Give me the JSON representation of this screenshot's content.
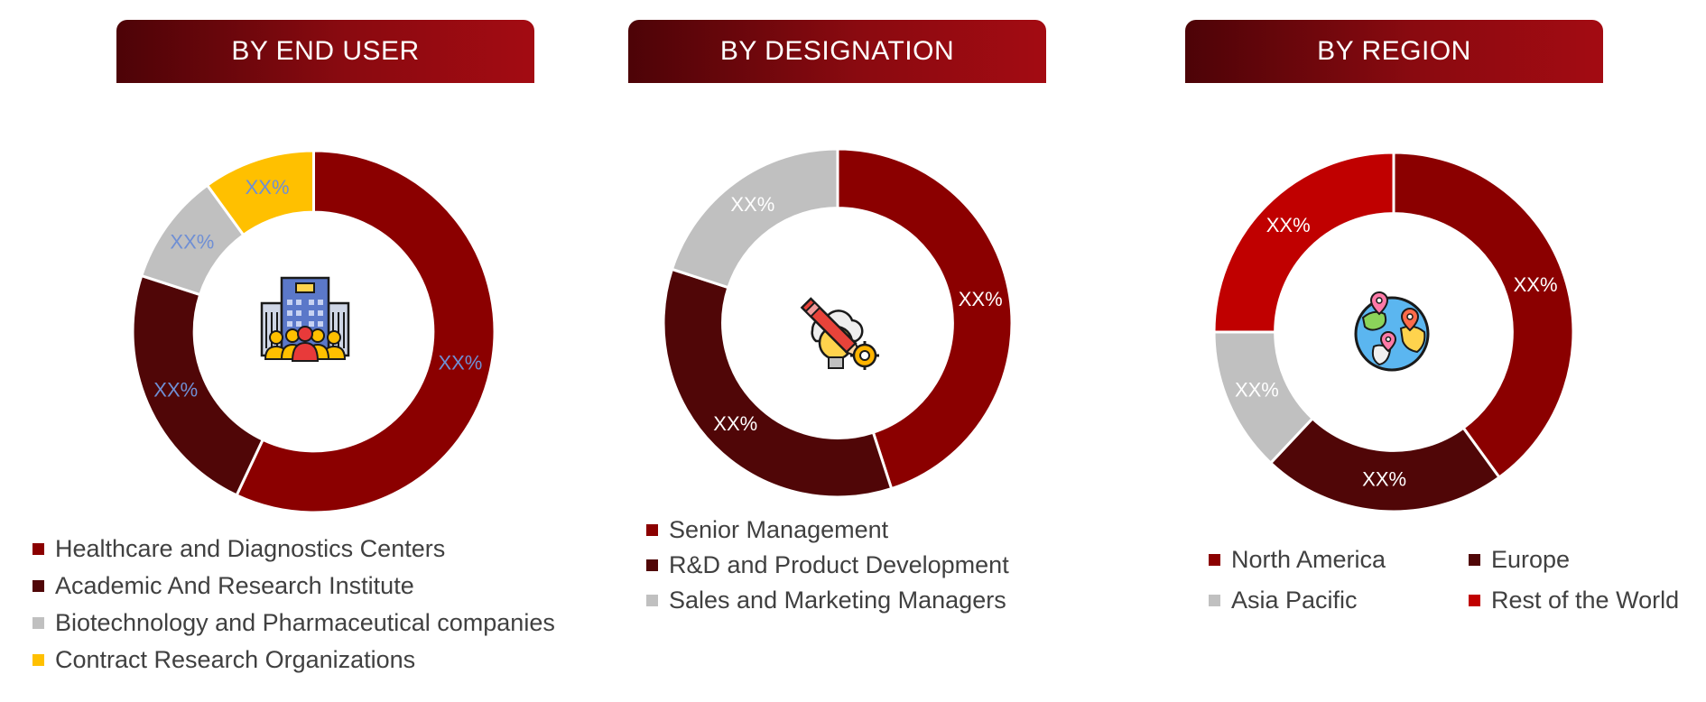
{
  "chart_data": [
    {
      "type": "pie",
      "title": "BY END USER",
      "categories": [
        "Healthcare and Diagnostics Centers",
        "Academic And Research Institute",
        "Biotechnology and Pharmaceutical companies",
        "Contract Research Organizations"
      ],
      "values": [
        57,
        23,
        10,
        10
      ],
      "data_labels": [
        "XX%",
        "XX%",
        "XX%",
        "XX%"
      ],
      "colors": [
        "#8b0000",
        "#500607",
        "#c0c0c0",
        "#ffc000"
      ],
      "label_color": "#6f8fd4",
      "legend_placement": "bottom",
      "center_icon": "hospital-building-people-icon"
    },
    {
      "type": "pie",
      "title": "BY DESIGNATION",
      "categories": [
        "Senior Management",
        "R&D and Product Development",
        "Sales and Marketing Managers"
      ],
      "values": [
        45,
        35,
        20
      ],
      "data_labels": [
        "XX%",
        "XX%",
        "XX%"
      ],
      "colors": [
        "#8b0000",
        "#500607",
        "#c0c0c0"
      ],
      "label_color": "#ffffff",
      "legend_placement": "bottom",
      "center_icon": "idea-pencil-gear-icon"
    },
    {
      "type": "pie",
      "title": "BY REGION",
      "categories": [
        "North America",
        "Europe",
        "Asia Pacific",
        "Rest of the World"
      ],
      "values": [
        40,
        22,
        13,
        25
      ],
      "data_labels": [
        "XX%",
        "XX%",
        "XX%",
        "XX%"
      ],
      "colors": [
        "#8b0000",
        "#500607",
        "#c0c0c0",
        "#c00000"
      ],
      "label_color": "#ffffff",
      "legend_placement": "bottom",
      "center_icon": "globe-location-pins-icon"
    }
  ]
}
